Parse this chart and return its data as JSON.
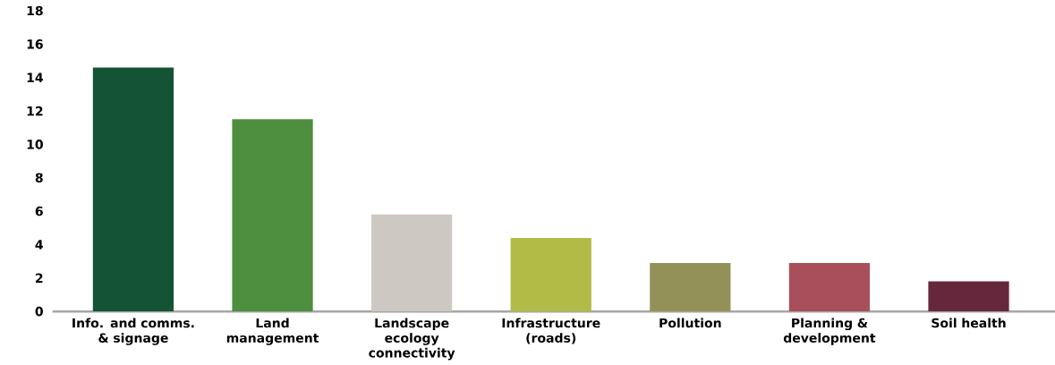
{
  "chart_data": {
    "type": "bar",
    "categories": [
      "Info. and comms. & signage",
      "Land management",
      "Landscape ecology connectivity",
      "Infrastructure (roads)",
      "Pollution",
      "Planning & development",
      "Soil health"
    ],
    "values": [
      14.6,
      11.5,
      5.8,
      4.4,
      2.9,
      2.9,
      1.8
    ],
    "colors": [
      "#145434",
      "#4d8e3f",
      "#cdc8c1",
      "#b3bb47",
      "#949158",
      "#a94f5b",
      "#66273d"
    ],
    "yticks": [
      0,
      2,
      4,
      6,
      8,
      10,
      12,
      14,
      16,
      18
    ],
    "ylim": [
      0,
      18
    ]
  }
}
